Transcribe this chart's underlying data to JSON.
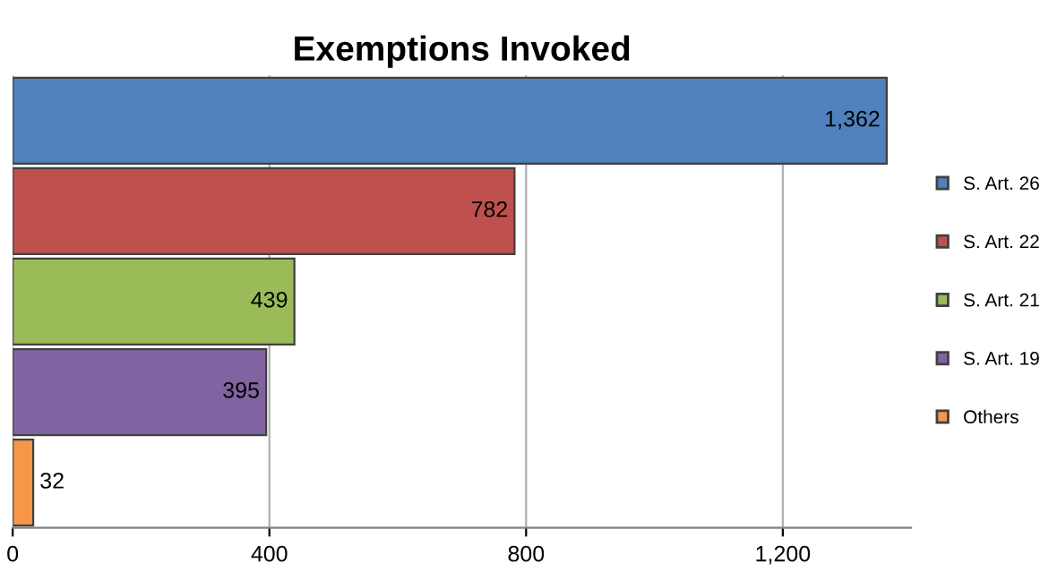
{
  "chart_data": {
    "type": "bar",
    "orientation": "horizontal",
    "title": "Exemptions Invoked",
    "categories": [
      null,
      null,
      null,
      null,
      null
    ],
    "series": [
      {
        "name": "S. Art. 26",
        "color": "#4f81bd",
        "values": [
          1362,
          null,
          null,
          null,
          null
        ],
        "value_labels": [
          "1,362",
          null,
          null,
          null,
          null
        ]
      },
      {
        "name": "S. Art. 22",
        "color": "#c0504d",
        "values": [
          null,
          782,
          null,
          null,
          null
        ],
        "value_labels": [
          null,
          "782",
          null,
          null,
          null
        ]
      },
      {
        "name": "S. Art. 21",
        "color": "#9bbb59",
        "values": [
          null,
          null,
          439,
          null,
          null
        ],
        "value_labels": [
          null,
          null,
          "439",
          null,
          null
        ]
      },
      {
        "name": "S. Art. 19",
        "color": "#8064a2",
        "values": [
          null,
          null,
          null,
          395,
          null
        ],
        "value_labels": [
          null,
          null,
          null,
          "395",
          null
        ]
      },
      {
        "name": "Others",
        "color": "#f79646",
        "values": [
          null,
          null,
          null,
          null,
          32
        ],
        "value_labels": [
          null,
          null,
          null,
          null,
          "32"
        ]
      }
    ],
    "xlim": [
      0,
      1400
    ],
    "xticks": [
      0,
      400,
      800,
      {
        "value": 1200,
        "label": "1,200"
      }
    ],
    "grid": "x",
    "legend": "right"
  }
}
